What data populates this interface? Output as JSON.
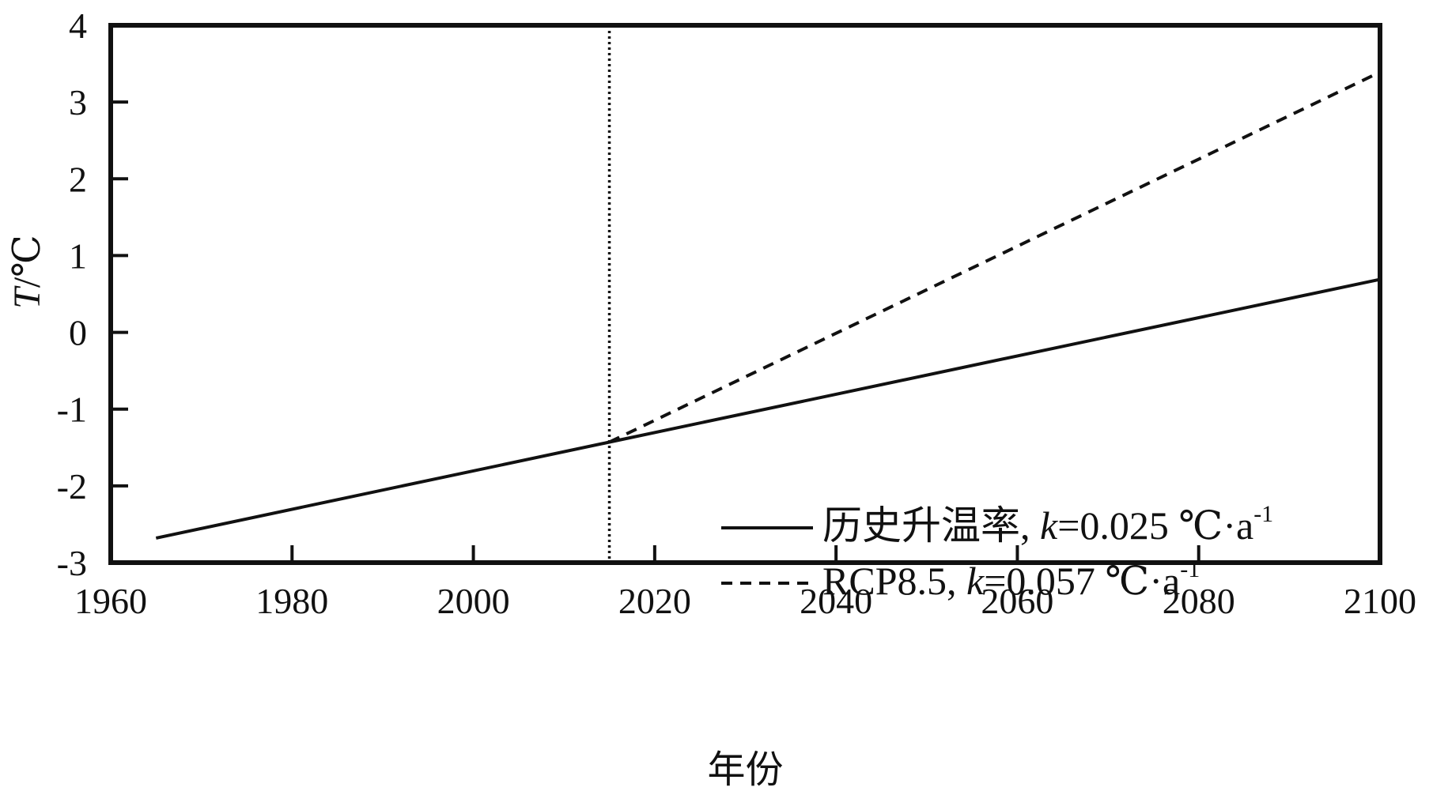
{
  "chart_data": {
    "type": "line",
    "xlabel": "年份",
    "ylabel_italic": "T",
    "ylabel_unit": "/℃",
    "xlim": [
      1960,
      2100
    ],
    "ylim": [
      -3,
      4
    ],
    "x_ticks": [
      1960,
      1980,
      2000,
      2020,
      2040,
      2060,
      2080,
      2100
    ],
    "y_ticks": [
      -3,
      -2,
      -1,
      0,
      1,
      2,
      3,
      4
    ],
    "grid": false,
    "legend_position": "bottom-right",
    "reference_line": {
      "x": 2015,
      "style": "dotted"
    },
    "series": [
      {
        "name": "历史升温率, k=0.025 ℃·a-1",
        "label_prefix": "历史升温率, ",
        "k_symbol": "k",
        "label_value": "=0.025 ℃·a",
        "label_sup": "-1",
        "style": "solid",
        "x": [
          1965,
          2015,
          2100
        ],
        "y": [
          -2.68,
          -1.43,
          0.69
        ]
      },
      {
        "name": "RCP8.5, k=0.057 ℃·a-1",
        "label_prefix": "RCP8.5, ",
        "k_symbol": "k",
        "label_value": "=0.057 ℃·a",
        "label_sup": "-1",
        "style": "dashed",
        "x": [
          2015,
          2100
        ],
        "y": [
          -1.43,
          3.39
        ]
      }
    ]
  }
}
